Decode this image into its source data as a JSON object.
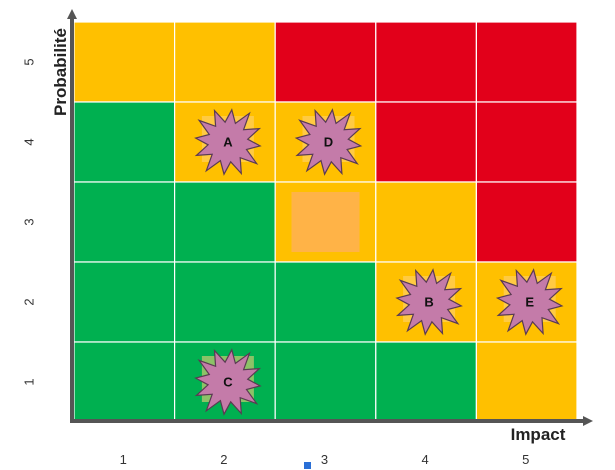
{
  "chart_data": {
    "type": "heatmap",
    "xlabel": "Impact",
    "ylabel": "Probabilité",
    "x_ticks": [
      "1",
      "2",
      "3",
      "4",
      "5"
    ],
    "y_ticks": [
      "1",
      "2",
      "3",
      "4",
      "5"
    ],
    "colors": {
      "green": "#00b050",
      "yellow": "#ffc000",
      "red": "#e2001a",
      "highlight": "#ffb347",
      "marker": "#c47ba9",
      "axis": "#555555"
    },
    "grid_rows_top_to_bottom": [
      [
        "yellow",
        "yellow",
        "red",
        "red",
        "red"
      ],
      [
        "green",
        "yellow",
        "yellow",
        "red",
        "red"
      ],
      [
        "green",
        "green",
        "yellow",
        "yellow",
        "red"
      ],
      [
        "green",
        "green",
        "green",
        "yellow",
        "yellow"
      ],
      [
        "green",
        "green",
        "green",
        "green",
        "yellow"
      ]
    ],
    "highlighted_cells": [
      {
        "impact": 3,
        "probability": 3
      }
    ],
    "risks": [
      {
        "label": "A",
        "impact": 2,
        "probability": 4
      },
      {
        "label": "D",
        "impact": 3,
        "probability": 4
      },
      {
        "label": "B",
        "impact": 4,
        "probability": 2
      },
      {
        "label": "E",
        "impact": 5,
        "probability": 2
      },
      {
        "label": "C",
        "impact": 2,
        "probability": 1
      }
    ]
  }
}
